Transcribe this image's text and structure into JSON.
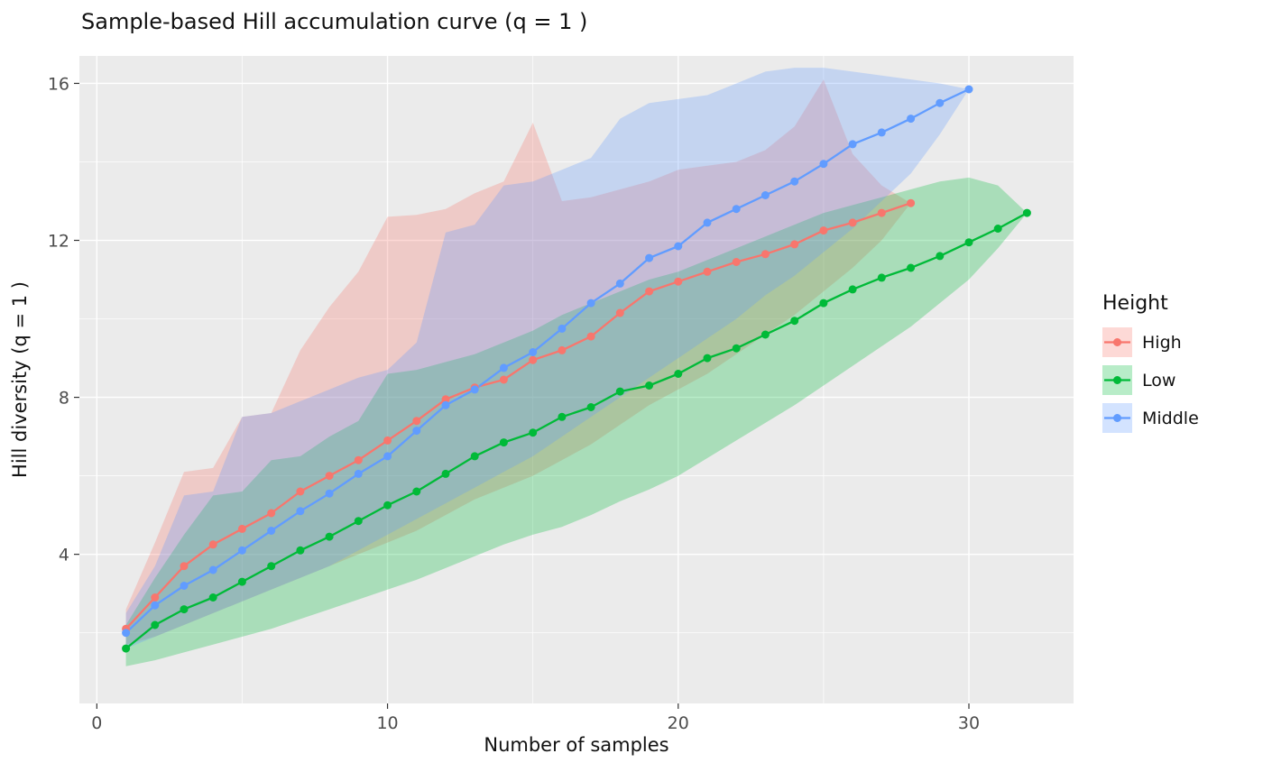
{
  "chart_data": {
    "type": "line",
    "title": "Sample-based Hill accumulation curve (q = 1 )",
    "xlabel": "Number of samples",
    "ylabel": "Hill diversity (q = 1 )",
    "legend_title": "Height",
    "legend_position": "right",
    "panel_background": "#EBEBEB",
    "grid_color": "#FFFFFF",
    "tick_color": "#333333",
    "tick_label_color": "#4D4D4D",
    "ribbon_opacity": 0.28,
    "x_domain": [
      -0.6,
      33.6
    ],
    "y_domain": [
      0.2,
      16.7
    ],
    "x_ticks": [
      0,
      10,
      20,
      30
    ],
    "x_minor_ticks": [
      5,
      15,
      25
    ],
    "y_ticks": [
      4,
      8,
      12,
      16
    ],
    "y_minor_ticks": [
      2,
      6,
      10,
      14
    ],
    "series": [
      {
        "name": "High",
        "color": "#F8766D",
        "x": [
          1,
          2,
          3,
          4,
          5,
          6,
          7,
          8,
          9,
          10,
          11,
          12,
          13,
          14,
          15,
          16,
          17,
          18,
          19,
          20,
          21,
          22,
          23,
          24,
          25,
          26,
          27,
          28
        ],
        "y": [
          2.1,
          2.9,
          3.7,
          4.25,
          4.65,
          5.05,
          5.6,
          6.0,
          6.4,
          6.9,
          7.4,
          7.95,
          8.25,
          8.45,
          8.95,
          9.2,
          9.55,
          10.15,
          10.7,
          10.95,
          11.2,
          11.45,
          11.65,
          11.9,
          12.25,
          12.45,
          12.7,
          12.95
        ],
        "upper": [
          2.6,
          4.3,
          6.1,
          6.2,
          7.5,
          7.6,
          9.2,
          10.3,
          11.2,
          12.6,
          12.65,
          12.8,
          13.2,
          13.5,
          15.0,
          13.0,
          13.1,
          13.3,
          13.5,
          13.8,
          13.9,
          14.0,
          14.3,
          14.9,
          16.1,
          14.2,
          13.4,
          12.95
        ],
        "lower": [
          1.7,
          1.9,
          2.2,
          2.5,
          2.8,
          3.1,
          3.4,
          3.7,
          4.0,
          4.3,
          4.6,
          5.0,
          5.4,
          5.7,
          6.0,
          6.4,
          6.8,
          7.3,
          7.8,
          8.2,
          8.6,
          9.1,
          9.6,
          10.1,
          10.7,
          11.3,
          12.0,
          12.95
        ]
      },
      {
        "name": "Low",
        "color": "#00BA38",
        "x": [
          1,
          2,
          3,
          4,
          5,
          6,
          7,
          8,
          9,
          10,
          11,
          12,
          13,
          14,
          15,
          16,
          17,
          18,
          19,
          20,
          21,
          22,
          23,
          24,
          25,
          26,
          27,
          28,
          29,
          30,
          31,
          32
        ],
        "y": [
          1.6,
          2.2,
          2.6,
          2.9,
          3.3,
          3.7,
          4.1,
          4.45,
          4.85,
          5.25,
          5.6,
          6.05,
          6.5,
          6.85,
          7.1,
          7.5,
          7.75,
          8.15,
          8.3,
          8.6,
          9.0,
          9.25,
          9.6,
          9.95,
          10.4,
          10.75,
          11.05,
          11.3,
          11.6,
          11.95,
          12.3,
          12.7
        ],
        "upper": [
          2.2,
          3.4,
          4.5,
          5.5,
          5.6,
          6.4,
          6.5,
          7.0,
          7.4,
          8.6,
          8.7,
          8.9,
          9.1,
          9.4,
          9.7,
          10.1,
          10.4,
          10.7,
          11.0,
          11.2,
          11.5,
          11.8,
          12.1,
          12.4,
          12.7,
          12.9,
          13.1,
          13.3,
          13.5,
          13.6,
          13.4,
          12.7
        ],
        "lower": [
          1.15,
          1.3,
          1.5,
          1.7,
          1.9,
          2.1,
          2.35,
          2.6,
          2.85,
          3.1,
          3.35,
          3.65,
          3.95,
          4.25,
          4.5,
          4.7,
          5.0,
          5.35,
          5.65,
          6.0,
          6.45,
          6.9,
          7.35,
          7.8,
          8.3,
          8.8,
          9.3,
          9.8,
          10.4,
          11.0,
          11.8,
          12.7
        ]
      },
      {
        "name": "Middle",
        "color": "#619CFF",
        "x": [
          1,
          2,
          3,
          4,
          5,
          6,
          7,
          8,
          9,
          10,
          11,
          12,
          13,
          14,
          15,
          16,
          17,
          18,
          19,
          20,
          21,
          22,
          23,
          24,
          25,
          26,
          27,
          28,
          29,
          30
        ],
        "y": [
          2.0,
          2.7,
          3.2,
          3.6,
          4.1,
          4.6,
          5.1,
          5.55,
          6.05,
          6.5,
          7.15,
          7.8,
          8.2,
          8.75,
          9.15,
          9.75,
          10.4,
          10.9,
          11.55,
          11.85,
          12.45,
          12.8,
          13.15,
          13.5,
          13.95,
          14.45,
          14.75,
          15.1,
          15.5,
          15.85
        ],
        "upper": [
          2.5,
          3.7,
          5.5,
          5.6,
          7.5,
          7.6,
          7.9,
          8.2,
          8.5,
          8.7,
          9.4,
          12.2,
          12.4,
          13.4,
          13.5,
          13.8,
          14.1,
          15.1,
          15.5,
          15.6,
          15.7,
          16.0,
          16.3,
          16.4,
          16.4,
          16.3,
          16.2,
          16.1,
          16.0,
          15.85
        ],
        "lower": [
          1.6,
          1.9,
          2.2,
          2.5,
          2.8,
          3.1,
          3.4,
          3.7,
          4.1,
          4.5,
          4.9,
          5.3,
          5.7,
          6.1,
          6.5,
          7.0,
          7.5,
          8.0,
          8.5,
          9.0,
          9.5,
          10.0,
          10.6,
          11.1,
          11.7,
          12.3,
          13.0,
          13.7,
          14.7,
          15.85
        ]
      }
    ]
  }
}
